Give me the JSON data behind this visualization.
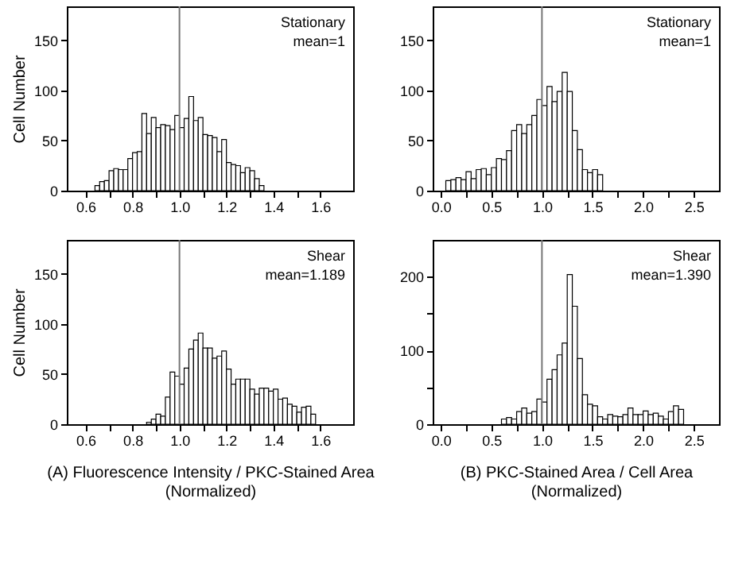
{
  "chart_data": [
    {
      "type": "histogram",
      "ylabel": "Cell Number",
      "annotations": [
        "Stationary",
        "mean=1"
      ],
      "color": "#ffffff",
      "bins": [
        0.64,
        0.66,
        0.68,
        0.7,
        0.72,
        0.74,
        0.76,
        0.78,
        0.8,
        0.82,
        0.84,
        0.86,
        0.88,
        0.9,
        0.92,
        0.94,
        0.96,
        0.98,
        1.0,
        1.02,
        1.04,
        1.06,
        1.08,
        1.1,
        1.12,
        1.14,
        1.16,
        1.18,
        1.2,
        1.22,
        1.24,
        1.26,
        1.28,
        1.3,
        1.32,
        1.34,
        1.36
      ],
      "values": [
        5,
        9,
        10,
        20,
        22,
        21,
        21,
        32,
        38,
        39,
        77,
        57,
        73,
        63,
        66,
        65,
        61,
        75,
        63,
        72,
        94,
        70,
        73,
        56,
        55,
        53,
        39,
        51,
        28,
        26,
        25,
        18,
        23,
        20,
        12,
        5
      ],
      "xlim": [
        0.52,
        1.74
      ],
      "ylim": [
        0,
        184
      ],
      "xticks": [
        {
          "value": 0.6,
          "label": "0.6"
        },
        {
          "value": 0.7,
          "label": null
        },
        {
          "value": 0.8,
          "label": "0.8"
        },
        {
          "value": 0.9,
          "label": null
        },
        {
          "value": 1.0,
          "label": "1.0"
        },
        {
          "value": 1.1,
          "label": null
        },
        {
          "value": 1.2,
          "label": "1.2"
        },
        {
          "value": 1.3,
          "label": null
        },
        {
          "value": 1.4,
          "label": "1.4"
        },
        {
          "value": 1.5,
          "label": null
        },
        {
          "value": 1.6,
          "label": "1.6"
        }
      ],
      "yticks": [
        0,
        50,
        100,
        150
      ],
      "ref_lines": [
        {
          "axis": "x",
          "value": 1.0,
          "color": "#777777"
        }
      ]
    },
    {
      "type": "histogram",
      "annotations": [
        "Stationary",
        "mean=1"
      ],
      "color": "#ffffff",
      "bins": [
        0.05,
        0.1,
        0.15,
        0.2,
        0.25,
        0.3,
        0.35,
        0.4,
        0.45,
        0.5,
        0.55,
        0.6,
        0.65,
        0.7,
        0.75,
        0.8,
        0.85,
        0.9,
        0.95,
        1.0,
        1.05,
        1.1,
        1.15,
        1.2,
        1.25,
        1.3,
        1.35,
        1.4,
        1.45,
        1.5,
        1.55,
        1.6
      ],
      "values": [
        10,
        11,
        13,
        11,
        19,
        12,
        21,
        22,
        16,
        23,
        32,
        31,
        40,
        60,
        66,
        57,
        66,
        75,
        91,
        85,
        104,
        89,
        99,
        118,
        99,
        60,
        41,
        21,
        18,
        21,
        16
      ],
      "xlim": [
        -0.08,
        2.75
      ],
      "ylim": [
        0,
        184
      ],
      "xticks": [
        {
          "value": 0,
          "label": "0.0"
        },
        {
          "value": 0.25,
          "label": null
        },
        {
          "value": 0.5,
          "label": "0.5"
        },
        {
          "value": 0.75,
          "label": null
        },
        {
          "value": 1.0,
          "label": "1.0"
        },
        {
          "value": 1.25,
          "label": null
        },
        {
          "value": 1.5,
          "label": "1.5"
        },
        {
          "value": 1.75,
          "label": null
        },
        {
          "value": 2.0,
          "label": "2.0"
        },
        {
          "value": 2.25,
          "label": null
        },
        {
          "value": 2.5,
          "label": "2.5"
        }
      ],
      "yticks": [
        0,
        50,
        100,
        150
      ],
      "ref_lines": [
        {
          "axis": "x",
          "value": 1.0,
          "color": "#777777"
        }
      ]
    },
    {
      "type": "histogram",
      "ylabel": "Cell Number",
      "xlabel": "(A) Fluorescence Intensity / PKC-Stained Area\n(Normalized)",
      "annotations": [
        "Shear",
        "mean=1.189"
      ],
      "color": "#ffffff",
      "bins": [
        0.86,
        0.88,
        0.9,
        0.92,
        0.94,
        0.96,
        0.98,
        1.0,
        1.02,
        1.04,
        1.06,
        1.08,
        1.1,
        1.12,
        1.14,
        1.16,
        1.18,
        1.2,
        1.22,
        1.24,
        1.26,
        1.28,
        1.3,
        1.32,
        1.34,
        1.36,
        1.38,
        1.4,
        1.42,
        1.44,
        1.46,
        1.48,
        1.5,
        1.52,
        1.54,
        1.56,
        1.58
      ],
      "values": [
        2,
        5,
        10,
        8,
        27,
        52,
        48,
        40,
        56,
        75,
        84,
        91,
        76,
        76,
        66,
        68,
        73,
        55,
        40,
        45,
        45,
        45,
        35,
        30,
        36,
        36,
        33,
        35,
        25,
        26,
        20,
        18,
        12,
        17,
        18,
        10
      ],
      "xlim": [
        0.52,
        1.74
      ],
      "ylim": [
        0,
        184
      ],
      "xticks": [
        {
          "value": 0.6,
          "label": "0.6"
        },
        {
          "value": 0.7,
          "label": null
        },
        {
          "value": 0.8,
          "label": "0.8"
        },
        {
          "value": 0.9,
          "label": null
        },
        {
          "value": 1.0,
          "label": "1.0"
        },
        {
          "value": 1.1,
          "label": null
        },
        {
          "value": 1.2,
          "label": "1.2"
        },
        {
          "value": 1.3,
          "label": null
        },
        {
          "value": 1.4,
          "label": "1.4"
        },
        {
          "value": 1.5,
          "label": null
        },
        {
          "value": 1.6,
          "label": "1.6"
        }
      ],
      "yticks": [
        0,
        50,
        100,
        150
      ],
      "ref_lines": [
        {
          "axis": "x",
          "value": 1.0,
          "color": "#777777"
        }
      ]
    },
    {
      "type": "histogram",
      "xlabel": "(B) PKC-Stained Area / Cell Area\n(Normalized)",
      "annotations": [
        "Shear",
        "mean=1.390"
      ],
      "color": "#ffffff",
      "bins": [
        0.6,
        0.65,
        0.7,
        0.75,
        0.8,
        0.85,
        0.9,
        0.95,
        1.0,
        1.05,
        1.1,
        1.15,
        1.2,
        1.25,
        1.3,
        1.35,
        1.4,
        1.45,
        1.5,
        1.55,
        1.6,
        1.65,
        1.7,
        1.75,
        1.8,
        1.85,
        1.9,
        1.95,
        2.0,
        2.05,
        2.1,
        2.15,
        2.2,
        2.25,
        2.3,
        2.35,
        2.4
      ],
      "values": [
        7,
        9,
        7,
        17,
        22,
        15,
        17,
        34,
        30,
        61,
        74,
        94,
        110,
        203,
        160,
        89,
        40,
        27,
        25,
        10,
        7,
        13,
        11,
        10,
        13,
        22,
        13,
        13,
        18,
        13,
        15,
        11,
        7,
        17,
        25,
        20
      ],
      "xlim": [
        -0.08,
        2.75
      ],
      "ylim": [
        0,
        250
      ],
      "xticks": [
        {
          "value": 0,
          "label": "0.0"
        },
        {
          "value": 0.25,
          "label": null
        },
        {
          "value": 0.5,
          "label": "0.5"
        },
        {
          "value": 0.75,
          "label": null
        },
        {
          "value": 1.0,
          "label": "1.0"
        },
        {
          "value": 1.25,
          "label": null
        },
        {
          "value": 1.5,
          "label": "1.5"
        },
        {
          "value": 1.75,
          "label": null
        },
        {
          "value": 2.0,
          "label": "2.0"
        },
        {
          "value": 2.25,
          "label": null
        },
        {
          "value": 2.5,
          "label": "2.5"
        }
      ],
      "yticks": [
        0,
        {
          "value": 50,
          "label": null
        },
        100,
        {
          "value": 150,
          "label": null
        },
        200
      ],
      "ref_lines": [
        {
          "axis": "x",
          "value": 1.0,
          "color": "#777777"
        }
      ]
    }
  ]
}
